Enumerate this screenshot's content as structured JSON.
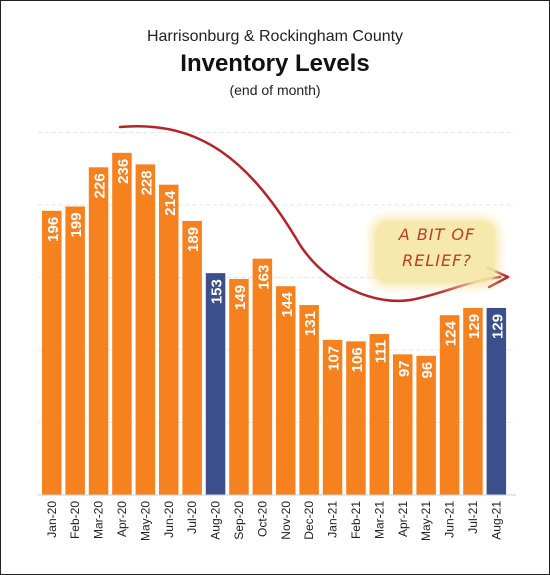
{
  "title": "Harrisonburg & Rockingham County",
  "subtitle": "Inventory Levels",
  "subtitle2": "(end of month)",
  "annotation": {
    "line1": "A BIT OF",
    "line2": "RELIEF?"
  },
  "colors": {
    "bar": "#f5821f",
    "highlight": "#3a4f8c",
    "arrow": "#b5232a",
    "note_bg": "#f6e7a6"
  },
  "chart_data": {
    "type": "bar",
    "categories": [
      "Jan-20",
      "Feb-20",
      "Mar-20",
      "Apr-20",
      "May-20",
      "Jun-20",
      "Jul-20",
      "Aug-20",
      "Sep-20",
      "Oct-20",
      "Nov-20",
      "Dec-20",
      "Jan-21",
      "Feb-21",
      "Mar-21",
      "Apr-21",
      "May-21",
      "Jun-21",
      "Jul-21",
      "Aug-21"
    ],
    "values": [
      196,
      199,
      226,
      236,
      228,
      214,
      189,
      153,
      149,
      163,
      144,
      131,
      107,
      106,
      111,
      97,
      96,
      124,
      129,
      129
    ],
    "highlighted": [
      "Aug-20",
      "Aug-21"
    ],
    "ylim": [
      0,
      270
    ],
    "grid": true,
    "data_labels": true
  }
}
